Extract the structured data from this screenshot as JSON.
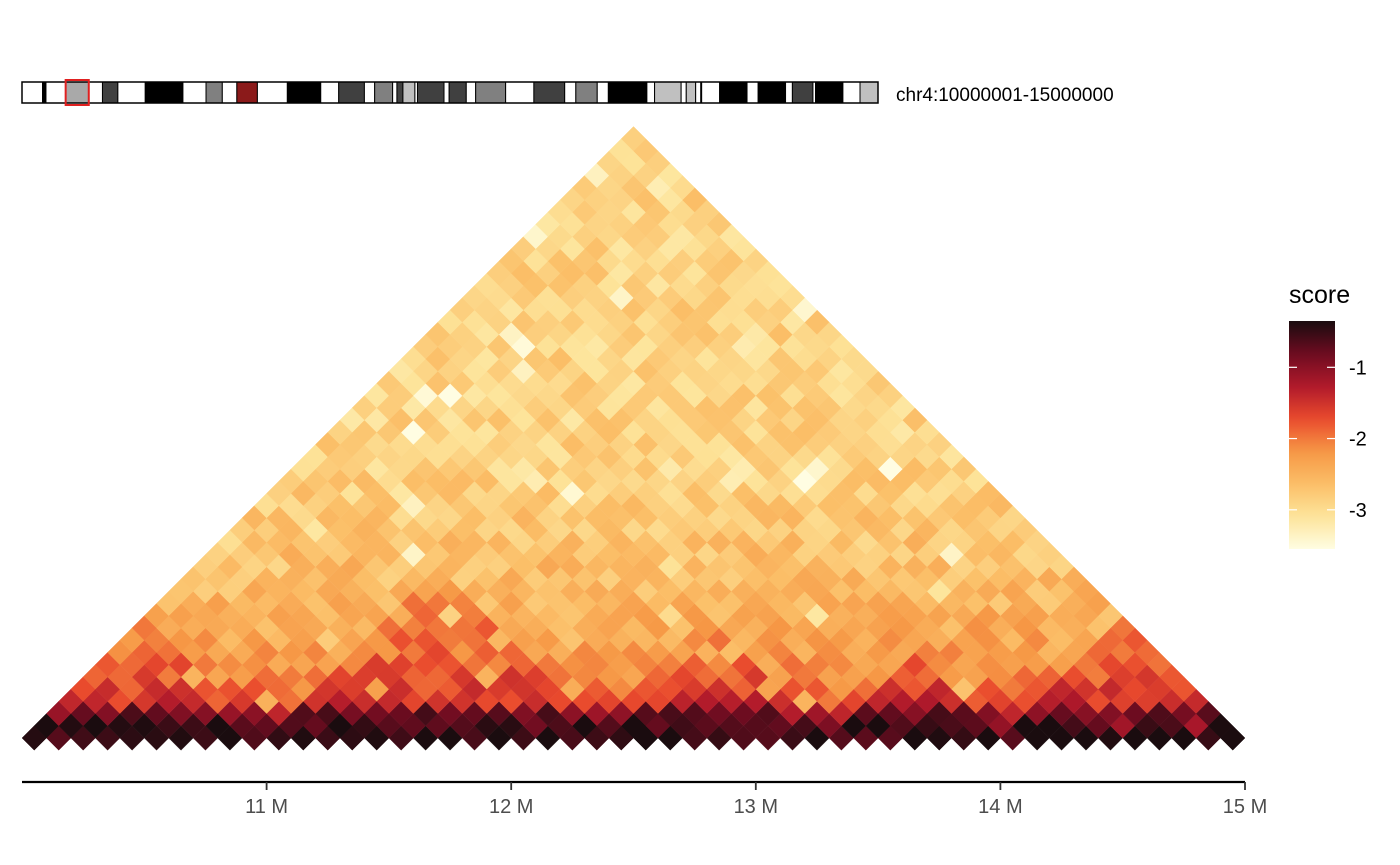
{
  "chart_data": {
    "type": "heatmap",
    "subtype": "hic-triangle",
    "region_label": "chr4:10000001-15000000",
    "legend_title": "score",
    "legend_placement": "right",
    "legend_ticks": [
      -1,
      -2,
      -3
    ],
    "color_range": [
      -3.55,
      -0.35
    ],
    "colors": [
      "#fffde2",
      "#fde49a",
      "#fbbe67",
      "#f69745",
      "#e94a2d",
      "#b0192b",
      "#6d0c20",
      "#1a0c0f"
    ],
    "bin_size_bp": 100000,
    "n_bins": 50,
    "x_range_bp": [
      10000000,
      15000000
    ],
    "x_ticks": [
      {
        "value": 11000000,
        "label": "11 M"
      },
      {
        "value": 12000000,
        "label": "12 M"
      },
      {
        "value": 13000000,
        "label": "13 M"
      },
      {
        "value": 14000000,
        "label": "14 M"
      },
      {
        "value": 15000000,
        "label": "15 M"
      }
    ],
    "grid": false,
    "ideogram": {
      "highlight_fraction": [
        0.051,
        0.078
      ],
      "bands": [
        [
          0.0,
          0.024,
          "#ffffff"
        ],
        [
          0.024,
          0.028,
          "#000000"
        ],
        [
          0.028,
          0.051,
          "#ffffff"
        ],
        [
          0.051,
          0.078,
          "#a9a9a9"
        ],
        [
          0.078,
          0.094,
          "#ffffff"
        ],
        [
          0.094,
          0.112,
          "#404040"
        ],
        [
          0.112,
          0.144,
          "#ffffff"
        ],
        [
          0.144,
          0.188,
          "#000000"
        ],
        [
          0.188,
          0.215,
          "#ffffff"
        ],
        [
          0.215,
          0.234,
          "#808080"
        ],
        [
          0.234,
          0.251,
          "#ffffff"
        ],
        [
          0.251,
          0.275,
          "#8b1a1a"
        ],
        [
          0.275,
          0.31,
          "#ffffff"
        ],
        [
          0.31,
          0.349,
          "#000000"
        ],
        [
          0.349,
          0.37,
          "#ffffff"
        ],
        [
          0.37,
          0.4,
          "#404040"
        ],
        [
          0.4,
          0.412,
          "#ffffff"
        ],
        [
          0.412,
          0.433,
          "#808080"
        ],
        [
          0.433,
          0.438,
          "#ffffff"
        ],
        [
          0.438,
          0.445,
          "#404040"
        ],
        [
          0.445,
          0.459,
          "#c0c0c0"
        ],
        [
          0.459,
          0.462,
          "#ffffff"
        ],
        [
          0.462,
          0.493,
          "#404040"
        ],
        [
          0.493,
          0.499,
          "#ffffff"
        ],
        [
          0.499,
          0.519,
          "#404040"
        ],
        [
          0.519,
          0.53,
          "#ffffff"
        ],
        [
          0.53,
          0.565,
          "#808080"
        ],
        [
          0.565,
          0.598,
          "#ffffff"
        ],
        [
          0.598,
          0.634,
          "#404040"
        ],
        [
          0.634,
          0.647,
          "#ffffff"
        ],
        [
          0.647,
          0.672,
          "#808080"
        ],
        [
          0.672,
          0.685,
          "#ffffff"
        ],
        [
          0.685,
          0.73,
          "#000000"
        ],
        [
          0.73,
          0.739,
          "#ffffff"
        ],
        [
          0.739,
          0.77,
          "#c0c0c0"
        ],
        [
          0.77,
          0.776,
          "#ffffff"
        ],
        [
          0.776,
          0.787,
          "#c0c0c0"
        ],
        [
          0.787,
          0.793,
          "#ffffff"
        ],
        [
          0.793,
          0.794,
          "#808080"
        ],
        [
          0.794,
          0.815,
          "#ffffff"
        ],
        [
          0.815,
          0.847,
          "#000000"
        ],
        [
          0.847,
          0.86,
          "#ffffff"
        ],
        [
          0.86,
          0.892,
          "#000000"
        ],
        [
          0.892,
          0.9,
          "#ffffff"
        ],
        [
          0.9,
          0.924,
          "#404040"
        ],
        [
          0.924,
          0.927,
          "#ffffff"
        ],
        [
          0.927,
          0.959,
          "#000000"
        ],
        [
          0.959,
          0.979,
          "#ffffff"
        ],
        [
          0.979,
          1.0,
          "#c0c0c0"
        ]
      ]
    }
  }
}
